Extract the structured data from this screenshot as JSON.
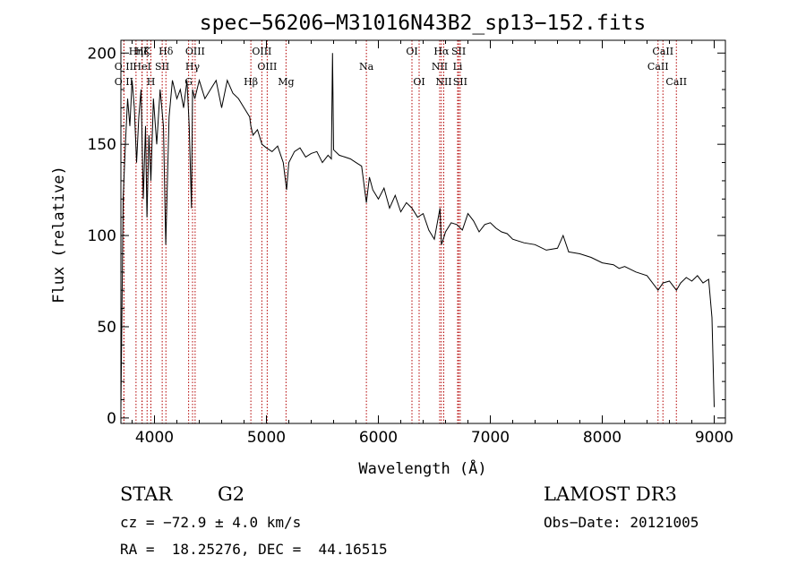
{
  "chart_data": {
    "type": "line",
    "title": "spec−56206−M31016N43B2_sp13−152.fits",
    "xlabel": "Wavelength (Å)",
    "ylabel": "Flux (relative)",
    "xlim": [
      3700,
      9100
    ],
    "ylim": [
      -3,
      207
    ],
    "xticks": [
      4000,
      5000,
      6000,
      7000,
      8000,
      9000
    ],
    "yticks": [
      0,
      50,
      100,
      150,
      200
    ],
    "series": [
      {
        "name": "spectrum",
        "x": [
          3700,
          3720,
          3740,
          3760,
          3780,
          3800,
          3820,
          3840,
          3860,
          3880,
          3900,
          3920,
          3933,
          3950,
          3968,
          3990,
          4020,
          4050,
          4080,
          4101,
          4130,
          4160,
          4200,
          4230,
          4260,
          4290,
          4310,
          4330,
          4340,
          4360,
          4400,
          4450,
          4500,
          4550,
          4600,
          4650,
          4700,
          4750,
          4800,
          4850,
          4861,
          4880,
          4920,
          4960,
          5000,
          5050,
          5100,
          5150,
          5180,
          5200,
          5250,
          5300,
          5350,
          5400,
          5450,
          5500,
          5550,
          5580,
          5590,
          5600,
          5650,
          5700,
          5750,
          5800,
          5850,
          5893,
          5920,
          5950,
          6000,
          6050,
          6100,
          6150,
          6200,
          6250,
          6300,
          6350,
          6400,
          6450,
          6500,
          6550,
          6563,
          6580,
          6600,
          6650,
          6700,
          6750,
          6800,
          6850,
          6900,
          6950,
          7000,
          7050,
          7100,
          7150,
          7200,
          7300,
          7400,
          7500,
          7600,
          7650,
          7700,
          7800,
          7900,
          8000,
          8100,
          8150,
          8200,
          8300,
          8400,
          8498,
          8542,
          8600,
          8662,
          8700,
          8750,
          8800,
          8850,
          8900,
          8950,
          8980,
          9000
        ],
        "y": [
          5,
          120,
          150,
          175,
          160,
          185,
          170,
          140,
          165,
          180,
          120,
          160,
          110,
          155,
          130,
          175,
          150,
          180,
          160,
          95,
          165,
          185,
          175,
          180,
          170,
          185,
          160,
          115,
          180,
          175,
          185,
          175,
          180,
          185,
          170,
          185,
          178,
          175,
          170,
          165,
          160,
          155,
          158,
          150,
          148,
          146,
          149,
          140,
          125,
          140,
          146,
          148,
          143,
          145,
          146,
          140,
          144,
          142,
          200,
          147,
          144,
          143,
          142,
          140,
          138,
          118,
          132,
          125,
          120,
          126,
          115,
          122,
          113,
          118,
          115,
          110,
          112,
          103,
          98,
          115,
          95,
          98,
          102,
          107,
          106,
          103,
          112,
          108,
          102,
          106,
          107,
          104,
          102,
          101,
          98,
          96,
          95,
          92,
          93,
          100,
          91,
          90,
          88,
          85,
          84,
          82,
          83,
          80,
          78,
          70,
          74,
          75,
          70,
          74,
          77,
          75,
          78,
          74,
          76,
          55,
          6
        ]
      }
    ],
    "lines": [
      {
        "name": "Hη",
        "wave": 3835,
        "row": 1
      },
      {
        "name": "O II",
        "wave": 3727,
        "row": 2
      },
      {
        "name": "O II",
        "wave": 3727,
        "row": 3
      },
      {
        "name": "Hζ",
        "wave": 3889,
        "row": 1
      },
      {
        "name": "K",
        "wave": 3934,
        "row": 1
      },
      {
        "name": "HeI",
        "wave": 3889,
        "row": 2
      },
      {
        "name": "SII",
        "wave": 4069,
        "row": 2
      },
      {
        "name": "H",
        "wave": 3968,
        "row": 3
      },
      {
        "name": "Hδ",
        "wave": 4102,
        "row": 1
      },
      {
        "name": "OIII",
        "wave": 4363,
        "row": 1
      },
      {
        "name": "Hγ",
        "wave": 4340,
        "row": 2
      },
      {
        "name": "G",
        "wave": 4305,
        "row": 3
      },
      {
        "name": "Hβ",
        "wave": 4861,
        "row": 3
      },
      {
        "name": "OIII",
        "wave": 4959,
        "row": 1
      },
      {
        "name": "OIII",
        "wave": 5007,
        "row": 2
      },
      {
        "name": "Mg",
        "wave": 5175,
        "row": 3
      },
      {
        "name": "Na",
        "wave": 5893,
        "row": 2
      },
      {
        "name": "OI",
        "wave": 6300,
        "row": 1
      },
      {
        "name": "OI",
        "wave": 6364,
        "row": 3
      },
      {
        "name": "Hα",
        "wave": 6563,
        "row": 1
      },
      {
        "name": "NII",
        "wave": 6548,
        "row": 2
      },
      {
        "name": "NII",
        "wave": 6584,
        "row": 3
      },
      {
        "name": "SII",
        "wave": 6717,
        "row": 1
      },
      {
        "name": "Li",
        "wave": 6708,
        "row": 2
      },
      {
        "name": "SII",
        "wave": 6731,
        "row": 3
      },
      {
        "name": "CaII",
        "wave": 8542,
        "row": 1
      },
      {
        "name": "CaII",
        "wave": 8498,
        "row": 2
      },
      {
        "name": "CaII",
        "wave": 8662,
        "row": 3
      }
    ]
  },
  "footer": {
    "class": "STAR",
    "subclass": "G2",
    "survey": "LAMOST DR3",
    "cz": "cz = −72.9 ± 4.0 km/s",
    "obs_date": "Obs−Date: 20121005",
    "radec": "RA =  18.25276, DEC =  44.16515"
  }
}
